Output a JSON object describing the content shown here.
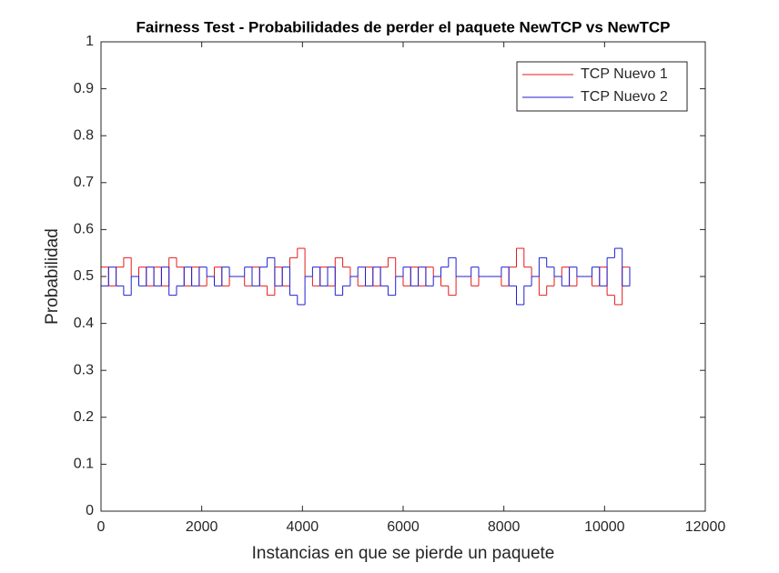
{
  "chart_data": {
    "type": "stairs",
    "title": "Fairness Test - Probabilidades de perder el paquete NewTCP vs NewTCP",
    "x_label": "Instancias en que se pierde un paquete",
    "y_label": "Probabilidad",
    "x": [
      0,
      150,
      300,
      450,
      600,
      750,
      900,
      1050,
      1200,
      1350,
      1500,
      1650,
      1800,
      1950,
      2100,
      2250,
      2400,
      2550,
      2700,
      2850,
      3000,
      3150,
      3300,
      3450,
      3600,
      3750,
      3900,
      4050,
      4200,
      4350,
      4500,
      4650,
      4800,
      4950,
      5100,
      5250,
      5400,
      5550,
      5700,
      5850,
      6000,
      6150,
      6300,
      6450,
      6600,
      6750,
      6900,
      7050,
      7200,
      7350,
      7500,
      7650,
      7800,
      7950,
      8100,
      8250,
      8400,
      8550,
      8700,
      8850,
      9000,
      9150,
      9300,
      9450,
      9600,
      9750,
      9900,
      10050,
      10200,
      10350,
      10500
    ],
    "series": [
      {
        "name": "TCP Nuevo 1",
        "color": "#e41a1c",
        "values": [
          0.52,
          0.48,
          0.52,
          0.54,
          0.5,
          0.52,
          0.48,
          0.52,
          0.48,
          0.54,
          0.52,
          0.48,
          0.52,
          0.48,
          0.5,
          0.52,
          0.48,
          0.5,
          0.5,
          0.48,
          0.52,
          0.48,
          0.46,
          0.52,
          0.48,
          0.54,
          0.56,
          0.5,
          0.48,
          0.52,
          0.48,
          0.54,
          0.52,
          0.5,
          0.48,
          0.52,
          0.48,
          0.52,
          0.54,
          0.5,
          0.48,
          0.52,
          0.48,
          0.52,
          0.5,
          0.48,
          0.46,
          0.5,
          0.5,
          0.48,
          0.5,
          0.5,
          0.5,
          0.48,
          0.52,
          0.56,
          0.52,
          0.5,
          0.46,
          0.48,
          0.5,
          0.52,
          0.48,
          0.5,
          0.5,
          0.48,
          0.52,
          0.46,
          0.44,
          0.52,
          0.48
        ]
      },
      {
        "name": "TCP Nuevo 2",
        "color": "#1f1fd0",
        "values": [
          0.48,
          0.52,
          0.48,
          0.46,
          0.5,
          0.48,
          0.52,
          0.48,
          0.52,
          0.46,
          0.48,
          0.52,
          0.48,
          0.52,
          0.5,
          0.48,
          0.52,
          0.5,
          0.5,
          0.52,
          0.48,
          0.52,
          0.54,
          0.48,
          0.52,
          0.46,
          0.44,
          0.5,
          0.52,
          0.48,
          0.52,
          0.46,
          0.48,
          0.5,
          0.52,
          0.48,
          0.52,
          0.48,
          0.46,
          0.5,
          0.52,
          0.48,
          0.52,
          0.48,
          0.5,
          0.52,
          0.54,
          0.5,
          0.5,
          0.52,
          0.5,
          0.5,
          0.5,
          0.52,
          0.48,
          0.44,
          0.48,
          0.5,
          0.54,
          0.52,
          0.5,
          0.48,
          0.52,
          0.5,
          0.5,
          0.52,
          0.48,
          0.54,
          0.56,
          0.48,
          0.52
        ]
      }
    ],
    "xlim": [
      0,
      12000
    ],
    "ylim": [
      0,
      1
    ],
    "xticks": [
      0,
      2000,
      4000,
      6000,
      8000,
      10000,
      12000
    ],
    "yticks": [
      0,
      0.1,
      0.2,
      0.3,
      0.4,
      0.5,
      0.6,
      0.7,
      0.8,
      0.9,
      1
    ],
    "legend": "top-right"
  }
}
